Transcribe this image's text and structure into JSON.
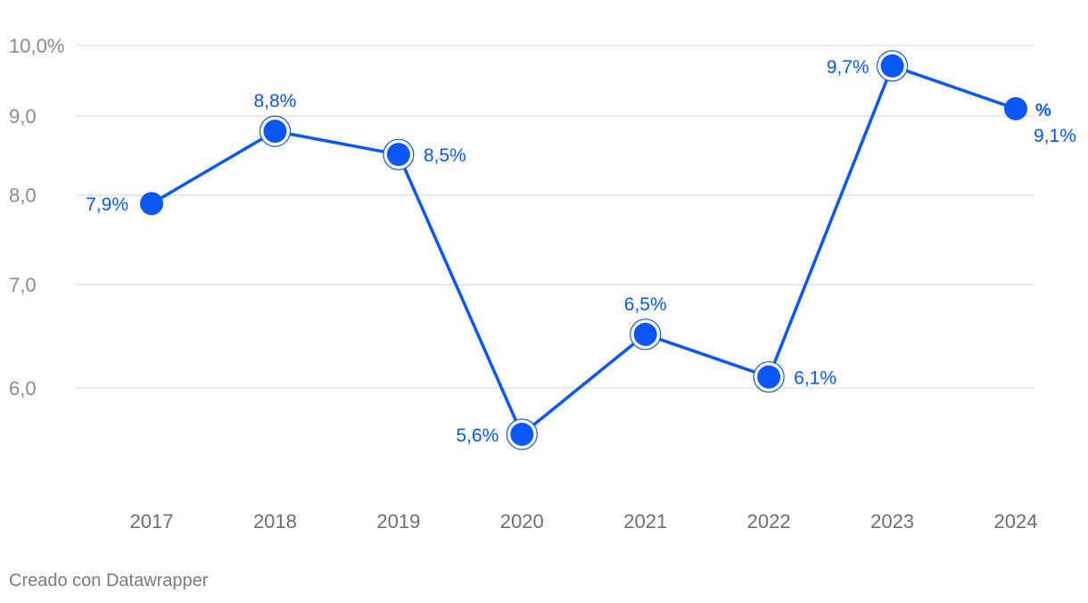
{
  "chart_data": {
    "type": "line",
    "categories": [
      "2017",
      "2018",
      "2019",
      "2020",
      "2021",
      "2022",
      "2023",
      "2024"
    ],
    "series": [
      {
        "name": "%",
        "values": [
          7.9,
          8.8,
          8.5,
          5.6,
          6.5,
          6.1,
          9.7,
          9.1
        ],
        "color": "#0b57f5"
      }
    ],
    "data_labels": [
      "7,9%",
      "8,8%",
      "8,5%",
      "5,6%",
      "6,5%",
      "6,1%",
      "9,7%",
      "9,1%"
    ],
    "yticks": [
      {
        "value": 6,
        "label": "6,0"
      },
      {
        "value": 7,
        "label": "7,0"
      },
      {
        "value": 8,
        "label": "8,0"
      },
      {
        "value": 9,
        "label": "9,0"
      },
      {
        "value": 10,
        "label": "10,0%"
      }
    ],
    "ylim": [
      5.3,
      10.3
    ],
    "y_scale": "log",
    "grid": true,
    "gridline_color": "#e3e3e3",
    "legend_placement": "right"
  },
  "credit": "Creado con Datawrapper"
}
